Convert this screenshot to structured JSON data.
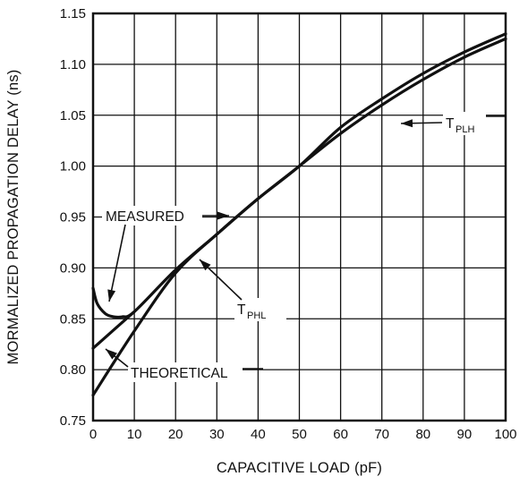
{
  "chart_data": {
    "type": "line",
    "title": "",
    "xlabel": "CAPACITIVE LOAD (pF)",
    "ylabel": "MORMALIZED PROPAGATION DELAY (ns)",
    "xlim": [
      0,
      100
    ],
    "ylim": [
      0.75,
      1.15
    ],
    "grid": true,
    "xticks": [
      "0",
      "10",
      "20",
      "30",
      "40",
      "50",
      "60",
      "70",
      "80",
      "90",
      "100"
    ],
    "yticks": [
      "0.75",
      "0.80",
      "0.85",
      "0.90",
      "0.95",
      "1.00",
      "1.05",
      "1.10",
      "1.15"
    ],
    "series": [
      {
        "name": "TPLH",
        "x": [
          0,
          10,
          20,
          30,
          40,
          50,
          60,
          70,
          80,
          90,
          100
        ],
        "y": [
          0.775,
          0.838,
          0.895,
          0.933,
          0.968,
          1.0,
          1.038,
          1.066,
          1.091,
          1.112,
          1.13
        ]
      },
      {
        "name": "TPHL",
        "x": [
          0,
          1,
          3,
          5,
          7,
          10,
          20,
          30,
          40,
          50,
          60,
          70,
          80,
          90,
          100
        ],
        "y": [
          0.88,
          0.865,
          0.855,
          0.852,
          0.852,
          0.857,
          0.898,
          0.933,
          0.968,
          1.0,
          1.032,
          1.06,
          1.085,
          1.107,
          1.125
        ]
      },
      {
        "name": "THEORETICAL",
        "x": [
          0,
          10
        ],
        "y": [
          0.821,
          0.857
        ]
      }
    ],
    "annotations": [
      {
        "text": "MEASURED"
      },
      {
        "text": "THEORETICAL"
      },
      {
        "main": "T",
        "sub": "PLH"
      },
      {
        "main": "T",
        "sub": "PHL"
      }
    ]
  }
}
